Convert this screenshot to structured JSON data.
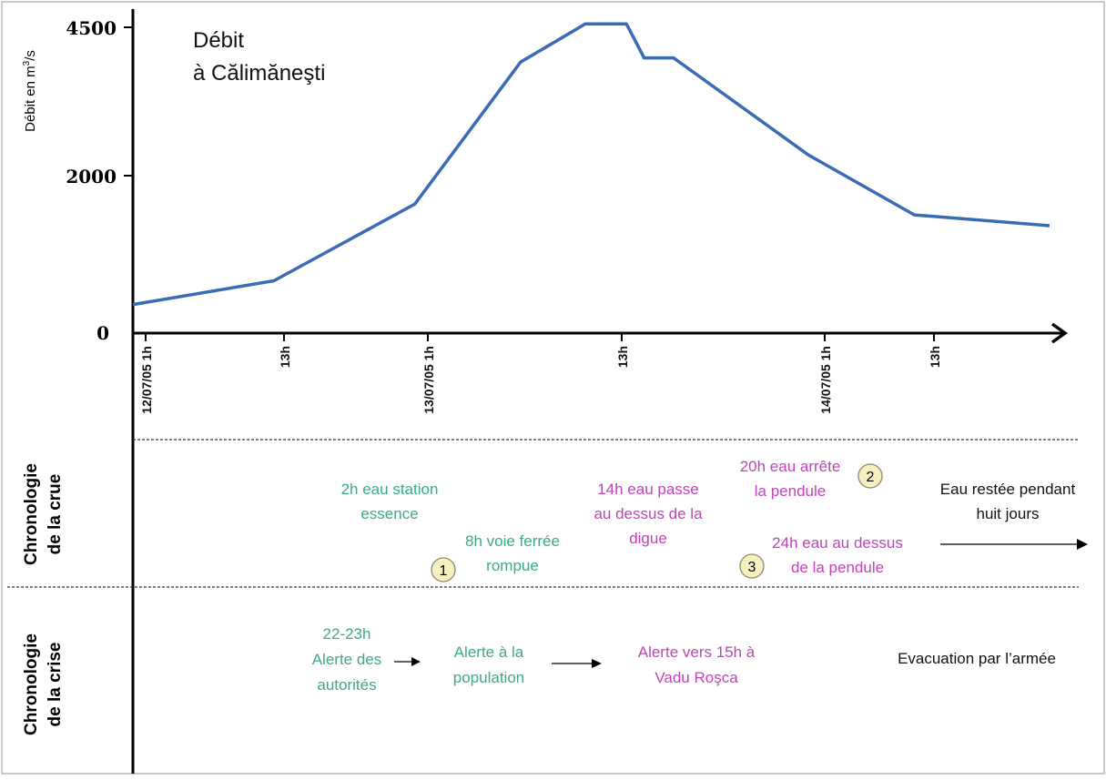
{
  "chart_data": {
    "type": "line",
    "title": "Débit",
    "subtitle": "à Călimăneşti",
    "ylabel_main": "Débit en m",
    "ylabel_sup": "3",
    "ylabel_end": "/s",
    "yticks": [
      {
        "value": 0,
        "label": "0"
      },
      {
        "value": 2000,
        "label": "2000"
      },
      {
        "value": 4500,
        "label": "4500"
      }
    ],
    "ylim": [
      0,
      4500
    ],
    "xlim_hours": [
      0,
      62
    ],
    "xticks": [
      {
        "t": 0,
        "label": "12/07/05  1h"
      },
      {
        "t": 12,
        "label": "13h"
      },
      {
        "t": 24,
        "label": "13/07/05  1h"
      },
      {
        "t": 40,
        "label": "13h"
      },
      {
        "t": 57,
        "label": "14/07/05  1h"
      },
      {
        "t": 66,
        "label": "13h"
      }
    ],
    "series": [
      {
        "color": "#3a6cb4",
        "x": [
          0,
          12,
          24,
          33,
          38.5,
          42,
          43.5,
          46,
          57.5,
          66.5,
          78
        ],
        "y": [
          420,
          770,
          1900,
          3990,
          4550,
          4550,
          4050,
          4050,
          2620,
          1740,
          1580
        ]
      }
    ]
  },
  "sections": {
    "crue_label_1": "Chronologie",
    "crue_label_2": "de la crue",
    "crise_label_1": "Chronologie",
    "crise_label_2": "de la crise"
  },
  "annotations": {
    "crue": {
      "a1_l1": "2h eau station",
      "a1_l2": "essence",
      "a2_l1": "8h voie ferrée",
      "a2_l2": "rompue",
      "a3_l1": "14h eau passe",
      "a3_l2": "au dessus de la",
      "a3_l3": "digue",
      "a4_l1": "20h eau arrête",
      "a4_l2": "la pendule",
      "a5_l1": "24h eau au dessus",
      "a5_l2": "de la pendule",
      "a6_l1": "Eau restée pendant",
      "a6_l2": "huit jours",
      "badge1": "1",
      "badge2": "2",
      "badge3": "3"
    },
    "crise": {
      "b1_l1": "22-23h",
      "b1_l2": "Alerte des",
      "b1_l3": "autorités",
      "b2_l1": "Alerte à la",
      "b2_l2": "population",
      "b3_l1": "Alerte vers 15h à",
      "b3_l2": "Vadu Roşca",
      "b4": "Evacuation par l’armée"
    }
  },
  "colors": {
    "line": "#3a6cb4",
    "green": "#3aaa8a",
    "pink": "#c044b8",
    "badge_fill": "#f6f0c0",
    "badge_stroke": "#8a8a6a"
  }
}
